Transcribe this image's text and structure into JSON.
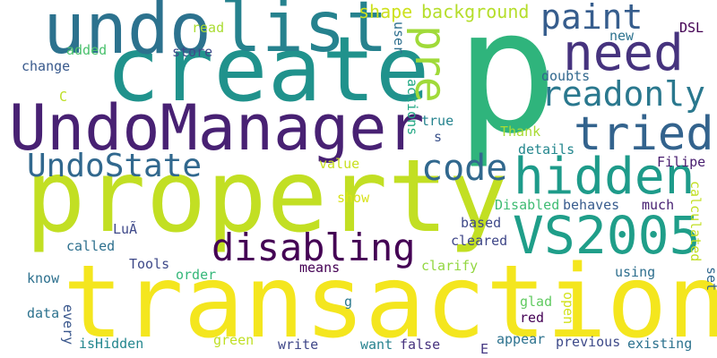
{
  "cloud": {
    "background": "#ffffff",
    "words": [
      {
        "text": "p",
        "color": "#2fb47c"
      },
      {
        "text": "property",
        "color": "#c2df23"
      },
      {
        "text": "transaction",
        "color": "#f4e61e"
      },
      {
        "text": "create",
        "color": "#20928c"
      },
      {
        "text": "UndoManager",
        "color": "#482173"
      },
      {
        "text": "undo",
        "color": "#2c728e"
      },
      {
        "text": "list",
        "color": "#26828e"
      },
      {
        "text": "need",
        "color": "#46337e"
      },
      {
        "text": "paint",
        "color": "#365d8d"
      },
      {
        "text": "pre",
        "color": "#a0da39"
      },
      {
        "text": "readonly",
        "color": "#2a788e"
      },
      {
        "text": "tried",
        "color": "#33638d"
      },
      {
        "text": "hidden",
        "color": "#1e9b8a"
      },
      {
        "text": "code",
        "color": "#31688e"
      },
      {
        "text": "UndoState",
        "color": "#31688e"
      },
      {
        "text": "VS2005",
        "color": "#1f9e89"
      },
      {
        "text": "disabling",
        "color": "#440154"
      },
      {
        "text": "shape",
        "color": "#cde11d"
      },
      {
        "text": "background",
        "color": "#b5de2b"
      },
      {
        "text": "read",
        "color": "#aadc32"
      },
      {
        "text": "store",
        "color": "#3e4989"
      },
      {
        "text": "added",
        "color": "#4ac16d"
      },
      {
        "text": "change",
        "color": "#38598c"
      },
      {
        "text": "C",
        "color": "#bddf26"
      },
      {
        "text": "user",
        "color": "#2e6f8e"
      },
      {
        "text": "new",
        "color": "#2c728e"
      },
      {
        "text": "DSL",
        "color": "#440154"
      },
      {
        "text": "doubts",
        "color": "#31688e"
      },
      {
        "text": "actions",
        "color": "#22a884"
      },
      {
        "text": "true",
        "color": "#25838e"
      },
      {
        "text": "s",
        "color": "#3b528b"
      },
      {
        "text": "Thank",
        "color": "#a8db34"
      },
      {
        "text": "details",
        "color": "#24878e"
      },
      {
        "text": "Filipe",
        "color": "#481d6f"
      },
      {
        "text": "value",
        "color": "#c8e020"
      },
      {
        "text": "calculated",
        "color": "#c2df23"
      },
      {
        "text": "show",
        "color": "#d8e219"
      },
      {
        "text": "Disabled",
        "color": "#3fbc73"
      },
      {
        "text": "behaves",
        "color": "#375b8d"
      },
      {
        "text": "much",
        "color": "#482173"
      },
      {
        "text": "based",
        "color": "#3e4989"
      },
      {
        "text": "LuÃ",
        "color": "#3e4989"
      },
      {
        "text": "cleared",
        "color": "#3f4788"
      },
      {
        "text": "called",
        "color": "#2d708e"
      },
      {
        "text": "Tools",
        "color": "#3e4989"
      },
      {
        "text": "means",
        "color": "#440154"
      },
      {
        "text": "clarify",
        "color": "#93d741"
      },
      {
        "text": "know",
        "color": "#2d708e"
      },
      {
        "text": "order",
        "color": "#35b779"
      },
      {
        "text": "using",
        "color": "#2e6f8e"
      },
      {
        "text": "set",
        "color": "#31688e"
      },
      {
        "text": "g",
        "color": "#2a788e"
      },
      {
        "text": "glad",
        "color": "#60ca60"
      },
      {
        "text": "open",
        "color": "#d2e21b"
      },
      {
        "text": "data",
        "color": "#2c728e"
      },
      {
        "text": "every",
        "color": "#39568c"
      },
      {
        "text": "red",
        "color": "#440154"
      },
      {
        "text": "isHidden",
        "color": "#24878e"
      },
      {
        "text": "green",
        "color": "#c0df25"
      },
      {
        "text": "write",
        "color": "#3f4788"
      },
      {
        "text": "want",
        "color": "#26828e"
      },
      {
        "text": "false",
        "color": "#46327e"
      },
      {
        "text": "E",
        "color": "#453882"
      },
      {
        "text": "appear",
        "color": "#2c728e"
      },
      {
        "text": "previous",
        "color": "#3e4a89"
      },
      {
        "text": "existing",
        "color": "#2c728e"
      }
    ]
  }
}
